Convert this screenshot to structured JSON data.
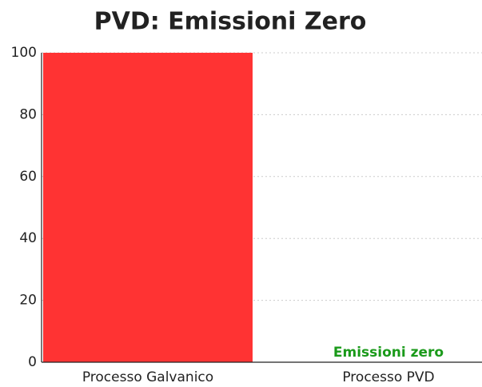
{
  "chart_data": {
    "type": "bar",
    "title": "PVD: Emissioni Zero",
    "categories": [
      "Processo Galvanico",
      "Processo PVD"
    ],
    "values": [
      100,
      0
    ],
    "color": "#ff3333",
    "annotation": "Emissioni zero",
    "annotation_color": "#1a9a1a",
    "ylim": [
      0,
      100
    ],
    "yticks": [
      0,
      20,
      40,
      60,
      80,
      100
    ],
    "grid": true
  }
}
